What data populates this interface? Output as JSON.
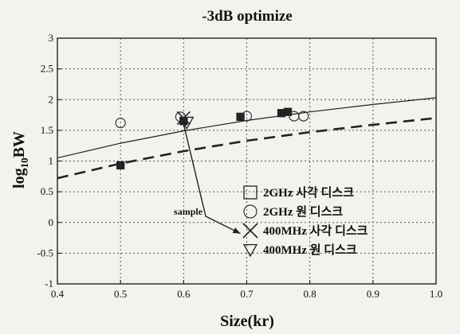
{
  "chart_data": {
    "type": "scatter",
    "title": "-3dB optimize",
    "xlabel": "Size(kr)",
    "ylabel": "log10BW",
    "xlim": [
      0.4,
      1.0
    ],
    "ylim": [
      -1,
      3
    ],
    "xticks": [
      "0.4",
      "0.5",
      "0.6",
      "0.7",
      "0.8",
      "0.9",
      "1.0"
    ],
    "yticks": [
      "-1",
      "-0.5",
      "0",
      "0.5",
      "1",
      "1.5",
      "2",
      "2.5",
      "3"
    ],
    "grid": "dotted",
    "legend_position": "bottom-right",
    "series": [
      {
        "name": "2GHz 사각 디스크",
        "marker": "square",
        "x": [
          0.5,
          0.6,
          0.69,
          0.755,
          0.765
        ],
        "y": [
          0.93,
          1.65,
          1.72,
          1.78,
          1.8
        ]
      },
      {
        "name": "2GHz 원 디스크",
        "marker": "circle",
        "x": [
          0.5,
          0.595,
          0.7,
          0.775,
          0.79
        ],
        "y": [
          1.62,
          1.72,
          1.73,
          1.73,
          1.73
        ]
      },
      {
        "name": "400MHz 사각 디스크",
        "marker": "x",
        "x": [
          0.6
        ],
        "y": [
          1.7
        ]
      },
      {
        "name": "400MHz 원 디스크",
        "marker": "triangle",
        "x": [
          0.605
        ],
        "y": [
          1.63
        ]
      }
    ],
    "curves": [
      {
        "style": "solid",
        "x": [
          0.4,
          0.5,
          0.6,
          0.7,
          0.8,
          0.9,
          1.0
        ],
        "y": [
          1.05,
          1.29,
          1.49,
          1.66,
          1.8,
          1.92,
          2.03
        ]
      },
      {
        "style": "dashed",
        "x": [
          0.4,
          0.5,
          0.6,
          0.7,
          0.8,
          0.9,
          1.0
        ],
        "y": [
          0.72,
          0.96,
          1.16,
          1.33,
          1.47,
          1.59,
          1.7
        ]
      }
    ],
    "annotations": [
      {
        "text": "sample",
        "points": [
          [
            0.6,
            1.6
          ],
          [
            0.635,
            0.1
          ],
          [
            0.69,
            -0.18
          ]
        ]
      }
    ]
  }
}
